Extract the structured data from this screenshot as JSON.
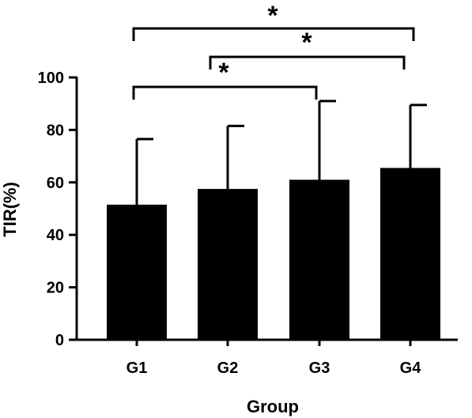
{
  "chart_data": {
    "type": "bar",
    "categories": [
      "G1",
      "G2",
      "G3",
      "G4"
    ],
    "values": [
      51.5,
      57.5,
      61,
      65.5
    ],
    "error_upper": [
      76.5,
      81.5,
      91,
      89.5
    ],
    "xlabel": "Group",
    "ylabel": "TIR(%)",
    "ylim": [
      0,
      100
    ],
    "yticks": [
      0,
      20,
      40,
      60,
      80,
      100
    ],
    "bar_color": "#000000",
    "grid": false,
    "significance": [
      {
        "from": "G1",
        "to": "G3",
        "label": "*"
      },
      {
        "from": "G2",
        "to": "G4",
        "label": "*"
      },
      {
        "from": "G1",
        "to": "G4",
        "label": "*"
      }
    ]
  }
}
